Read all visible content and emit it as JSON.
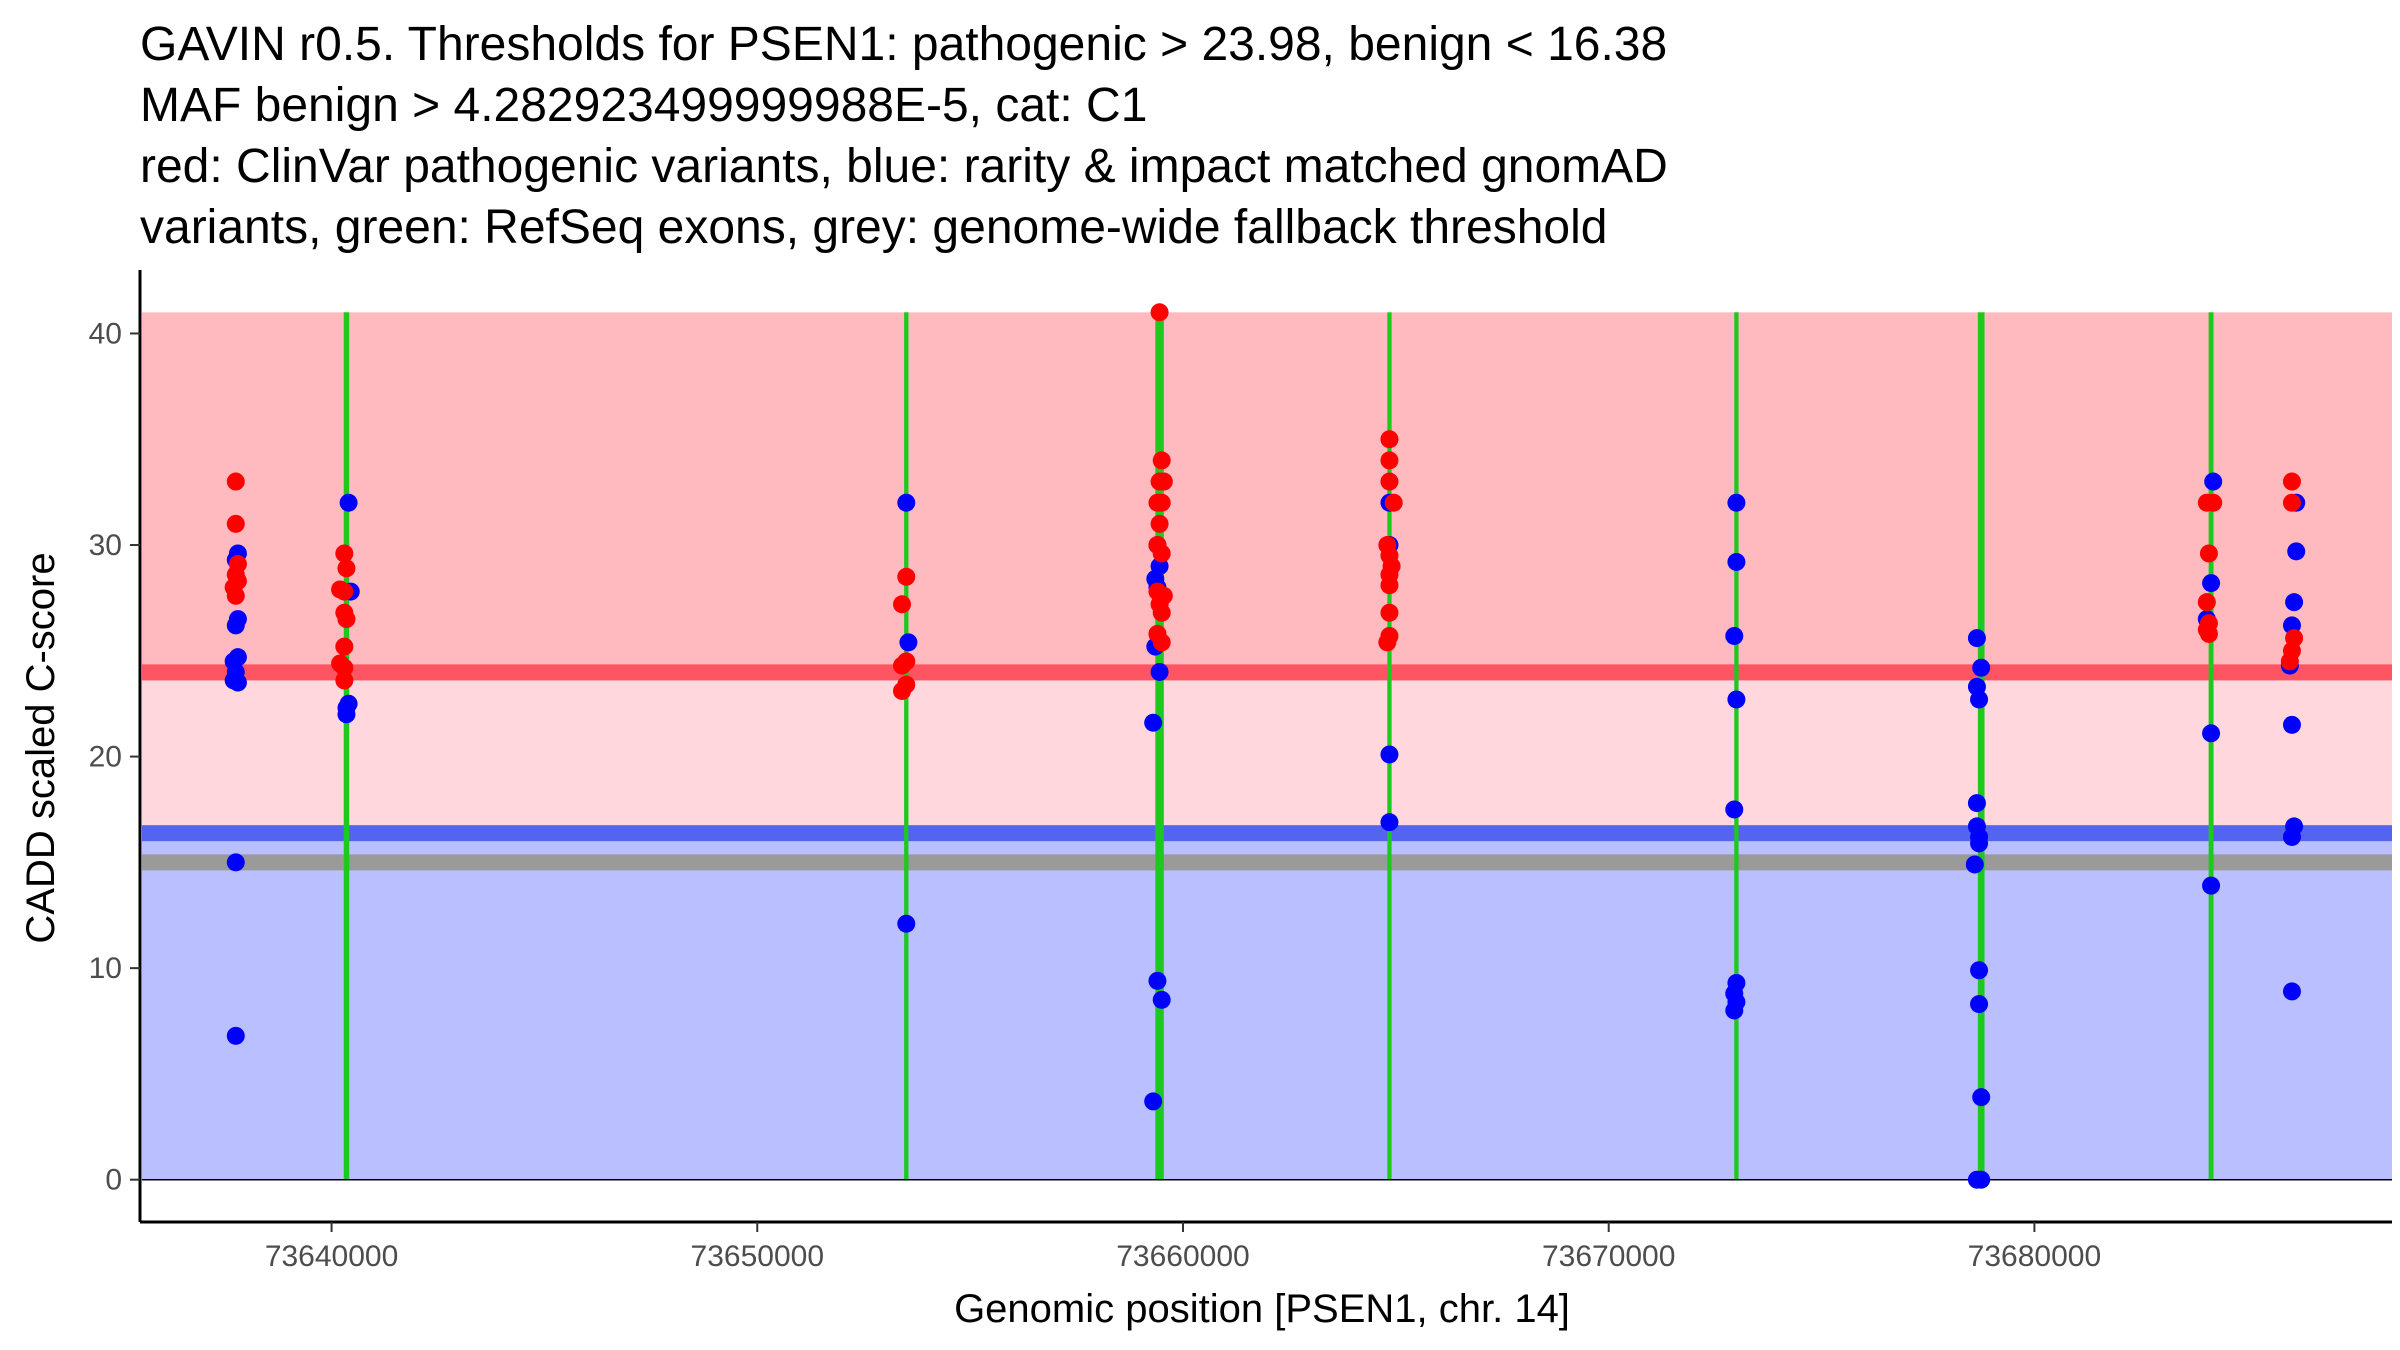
{
  "title_lines": [
    "GAVIN r0.5. Thresholds for PSEN1: pathogenic > 23.98, benign < 16.38",
    "MAF benign > 4.282923499999988E-5, cat: C1",
    "red: ClinVar pathogenic variants, blue: rarity & impact matched gnomAD",
    "variants, green: RefSeq exons, grey: genome-wide fallback threshold"
  ],
  "colors": {
    "pathogenic_region": "#ffbac0",
    "mid_region": "#ffd7dc",
    "benign_region": "#babfff",
    "pathogenic_line": "#ff5462",
    "benign_line": "#5365ef",
    "fallback_line": "#9a9a9a",
    "exon": "#1fc81f",
    "clinvar_point": "#ff0000",
    "gnomad_point": "#0000ff",
    "axis": "#000000"
  },
  "chart_data": {
    "type": "scatter",
    "xlabel": "Genomic position [PSEN1, chr. 14]",
    "ylabel": "CADD scaled C-score",
    "xlim": [
      73635500,
      73688400
    ],
    "ylim": [
      -2,
      43
    ],
    "x_ticks": [
      73640000,
      73650000,
      73660000,
      73670000,
      73680000
    ],
    "x_tick_labels": [
      "73640000",
      "73650000",
      "73660000",
      "73670000",
      "73680000"
    ],
    "y_ticks": [
      0,
      10,
      20,
      30,
      40
    ],
    "y_tick_labels": [
      "0",
      "10",
      "20",
      "30",
      "40"
    ],
    "thresholds": {
      "pathogenic": 23.98,
      "benign": 16.38,
      "fallback": 15
    },
    "regions": {
      "top": 41,
      "bottom": 0
    },
    "exons": [
      {
        "position": 73640350,
        "width": 1
      },
      {
        "position": 73653500,
        "width": 0.6
      },
      {
        "position": 73659450,
        "width": 2
      },
      {
        "position": 73664850,
        "width": 0.6
      },
      {
        "position": 73673000,
        "width": 0.6
      },
      {
        "position": 73678750,
        "width": 1.4
      },
      {
        "position": 73684150,
        "width": 0.8
      }
    ],
    "series": [
      {
        "name": "ClinVar pathogenic",
        "color": "#ff0000",
        "points": [
          [
            73637750,
            33
          ],
          [
            73637750,
            31
          ],
          [
            73637800,
            29.1
          ],
          [
            73637750,
            28.6
          ],
          [
            73637800,
            28.3
          ],
          [
            73637700,
            28.0
          ],
          [
            73637750,
            27.6
          ],
          [
            73640300,
            29.6
          ],
          [
            73640350,
            28.9
          ],
          [
            73640200,
            27.9
          ],
          [
            73640300,
            27.8
          ],
          [
            73640300,
            26.8
          ],
          [
            73640350,
            26.5
          ],
          [
            73640300,
            25.2
          ],
          [
            73640200,
            24.4
          ],
          [
            73640300,
            24.2
          ],
          [
            73640300,
            23.6
          ],
          [
            73653500,
            28.5
          ],
          [
            73653400,
            27.2
          ],
          [
            73653500,
            24.5
          ],
          [
            73653400,
            24.3
          ],
          [
            73653500,
            23.4
          ],
          [
            73653400,
            23.1
          ],
          [
            73659450,
            41
          ],
          [
            73659500,
            34
          ],
          [
            73659450,
            33
          ],
          [
            73659550,
            33
          ],
          [
            73659400,
            32
          ],
          [
            73659500,
            32
          ],
          [
            73659450,
            31
          ],
          [
            73659400,
            30
          ],
          [
            73659500,
            29.6
          ],
          [
            73659400,
            27.8
          ],
          [
            73659550,
            27.6
          ],
          [
            73659450,
            27.2
          ],
          [
            73659500,
            26.8
          ],
          [
            73659400,
            25.8
          ],
          [
            73659500,
            25.4
          ],
          [
            73664850,
            35
          ],
          [
            73664850,
            34
          ],
          [
            73664850,
            33
          ],
          [
            73664950,
            32
          ],
          [
            73664800,
            30
          ],
          [
            73664850,
            29.5
          ],
          [
            73664900,
            29.0
          ],
          [
            73664850,
            28.6
          ],
          [
            73664850,
            28.1
          ],
          [
            73664850,
            26.8
          ],
          [
            73664850,
            25.7
          ],
          [
            73664800,
            25.4
          ],
          [
            73684050,
            32
          ],
          [
            73684200,
            32
          ],
          [
            73684100,
            29.6
          ],
          [
            73684050,
            27.3
          ],
          [
            73684100,
            26.3
          ],
          [
            73684050,
            26.0
          ],
          [
            73684100,
            25.8
          ],
          [
            73686050,
            33
          ],
          [
            73686050,
            32
          ],
          [
            73686100,
            25.6
          ],
          [
            73686050,
            25.0
          ],
          [
            73686000,
            24.5
          ]
        ]
      },
      {
        "name": "gnomAD matched",
        "color": "#0000ff",
        "points": [
          [
            73637800,
            29.6
          ],
          [
            73637750,
            29.3
          ],
          [
            73637800,
            26.5
          ],
          [
            73637750,
            26.2
          ],
          [
            73637800,
            24.7
          ],
          [
            73637700,
            24.5
          ],
          [
            73637750,
            24.0
          ],
          [
            73637700,
            23.6
          ],
          [
            73637800,
            23.5
          ],
          [
            73637750,
            15.0
          ],
          [
            73637750,
            6.8
          ],
          [
            73640400,
            32
          ],
          [
            73640450,
            27.8
          ],
          [
            73640400,
            22.5
          ],
          [
            73640350,
            22.3
          ],
          [
            73640350,
            22.0
          ],
          [
            73653500,
            32
          ],
          [
            73653550,
            25.4
          ],
          [
            73653500,
            12.1
          ],
          [
            73659300,
            21.6
          ],
          [
            73659400,
            30
          ],
          [
            73659350,
            28.4
          ],
          [
            73659400,
            28.0
          ],
          [
            73659450,
            29.0
          ],
          [
            73659450,
            24.0
          ],
          [
            73659350,
            25.2
          ],
          [
            73659400,
            9.4
          ],
          [
            73659500,
            8.5
          ],
          [
            73659300,
            3.7
          ],
          [
            73664850,
            32
          ],
          [
            73664850,
            30
          ],
          [
            73664850,
            20.1
          ],
          [
            73664850,
            16.9
          ],
          [
            73673000,
            32
          ],
          [
            73673000,
            29.2
          ],
          [
            73672950,
            25.7
          ],
          [
            73673000,
            22.7
          ],
          [
            73672950,
            17.5
          ],
          [
            73673000,
            9.3
          ],
          [
            73672950,
            8.8
          ],
          [
            73673000,
            8.4
          ],
          [
            73672950,
            8.0
          ],
          [
            73678650,
            25.6
          ],
          [
            73678750,
            24.2
          ],
          [
            73678650,
            23.3
          ],
          [
            73678700,
            22.7
          ],
          [
            73678650,
            17.8
          ],
          [
            73678650,
            16.7
          ],
          [
            73678700,
            16.2
          ],
          [
            73678700,
            15.9
          ],
          [
            73678600,
            14.9
          ],
          [
            73678700,
            9.9
          ],
          [
            73678700,
            8.3
          ],
          [
            73678750,
            3.9
          ],
          [
            73678650,
            0
          ],
          [
            73678750,
            0
          ],
          [
            73684200,
            33
          ],
          [
            73684050,
            26.5
          ],
          [
            73684150,
            28.2
          ],
          [
            73684150,
            21.1
          ],
          [
            73684150,
            13.9
          ],
          [
            73686150,
            32
          ],
          [
            73686150,
            29.7
          ],
          [
            73686100,
            27.3
          ],
          [
            73686050,
            26.2
          ],
          [
            73686000,
            24.3
          ],
          [
            73686050,
            21.5
          ],
          [
            73686100,
            16.7
          ],
          [
            73686050,
            16.2
          ],
          [
            73686050,
            8.9
          ]
        ]
      }
    ]
  }
}
